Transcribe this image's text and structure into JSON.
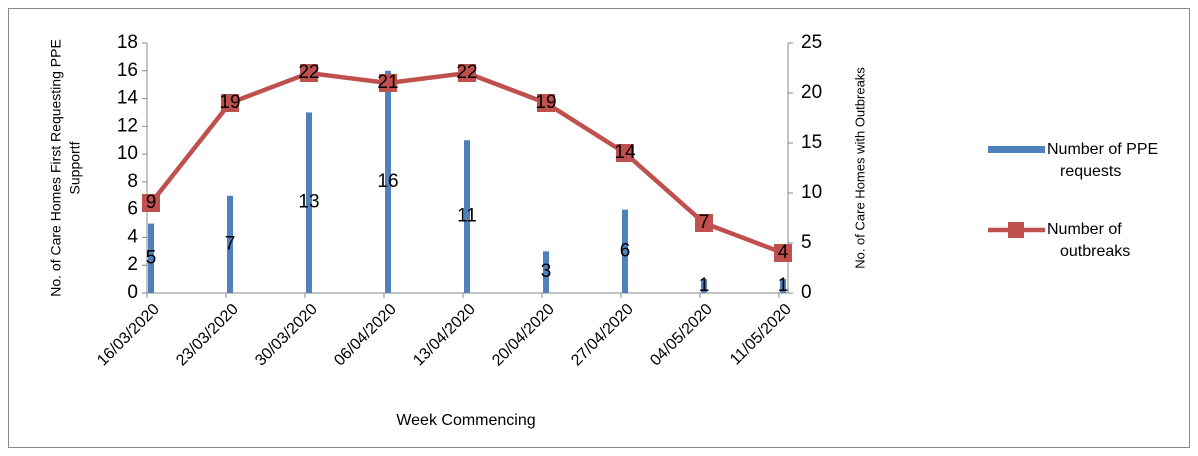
{
  "chart_data": {
    "type": "bar_line",
    "categories": [
      "16/03/2020",
      "23/03/2020",
      "30/03/2020",
      "06/04/2020",
      "13/04/2020",
      "20/04/2020",
      "27/04/2020",
      "04/05/2020",
      "11/05/2020"
    ],
    "series": [
      {
        "name": "Number of PPE requests",
        "type": "bar",
        "color": "#4f81bd",
        "values": [
          5,
          7,
          13,
          16,
          11,
          3,
          6,
          1,
          1
        ]
      },
      {
        "name": "Number of outbreaks",
        "type": "line",
        "color": "#c0504d",
        "axis": "y2",
        "values": [
          9,
          19,
          22,
          21,
          22,
          19,
          14,
          7,
          4
        ]
      }
    ],
    "x_label": "Week Commencing",
    "y_label": [
      "No. of Care Homes First Requesting PPE",
      "Supportf"
    ],
    "y2_label": "No. of Care Homes with Outbreaks",
    "ylim": [
      0,
      18
    ],
    "yticks": [
      0,
      2,
      4,
      6,
      8,
      10,
      12,
      14,
      16,
      18
    ],
    "y2lim": [
      0,
      25
    ],
    "y2ticks": [
      0,
      5,
      10,
      15,
      20,
      25
    ],
    "legend": "right"
  }
}
